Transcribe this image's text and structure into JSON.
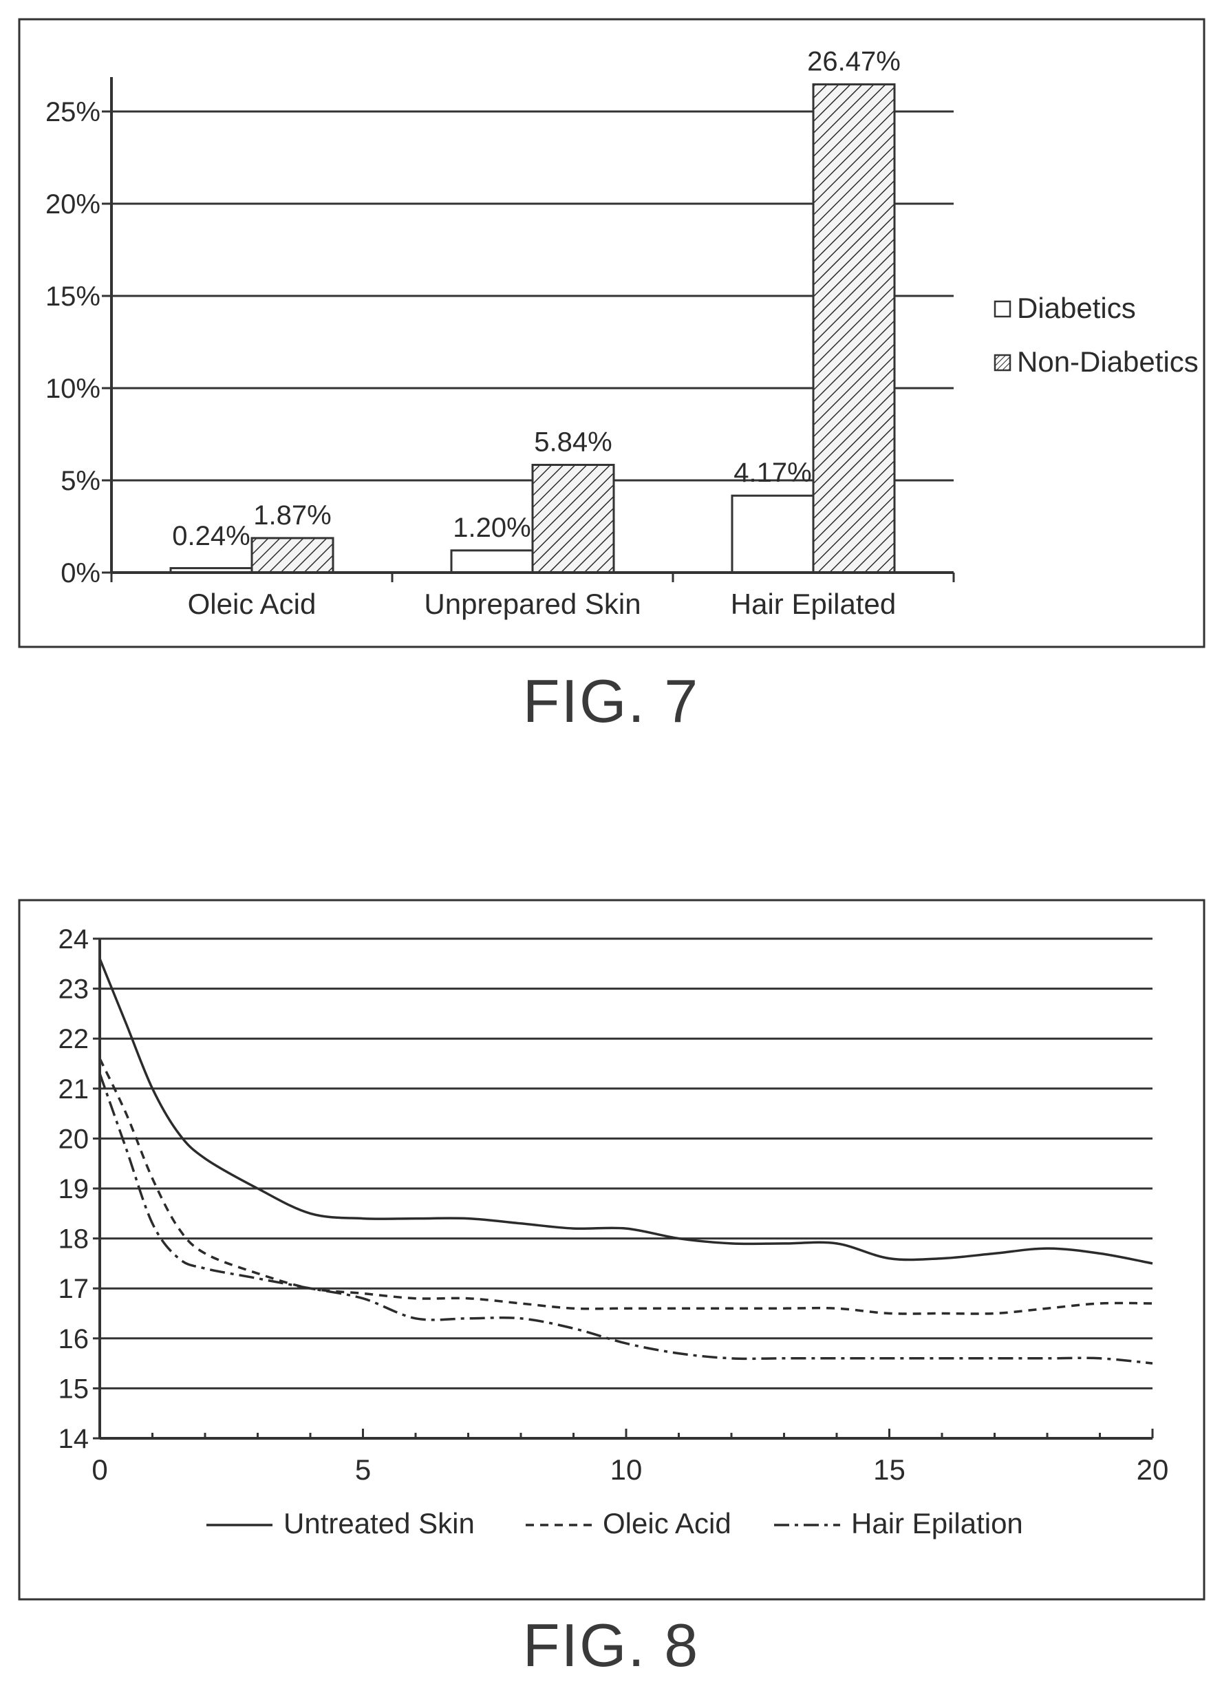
{
  "figures": [
    {
      "caption": "FIG. 7"
    },
    {
      "caption": "FIG. 8"
    }
  ],
  "chart_data": [
    {
      "type": "bar",
      "title": "",
      "categories": [
        "Oleic Acid",
        "Unprepared Skin",
        "Hair Epilated"
      ],
      "series": [
        {
          "name": "Diabetics",
          "values": [
            0.24,
            1.2,
            4.17
          ],
          "labels": [
            "0.24%",
            "1.20%",
            "4.17%"
          ],
          "pattern": "none"
        },
        {
          "name": "Non-Diabetics",
          "values": [
            1.87,
            5.84,
            26.47
          ],
          "labels": [
            "1.87%",
            "5.84%",
            "26.47%"
          ],
          "pattern": "hatch"
        }
      ],
      "yticks": [
        "0%",
        "5%",
        "10%",
        "15%",
        "20%",
        "25%"
      ],
      "ylim": [
        0,
        25
      ],
      "ylabel": "",
      "xlabel": "",
      "grid": true,
      "legend": "right"
    },
    {
      "type": "line",
      "title": "",
      "x": [
        0,
        0.5,
        1,
        1.5,
        2,
        3,
        4,
        5,
        6,
        7,
        8,
        9,
        10,
        11,
        12,
        13,
        14,
        15,
        16,
        17,
        18,
        19,
        20
      ],
      "series": [
        {
          "name": "Untreated Skin",
          "dash": "solid",
          "values": [
            23.6,
            22.3,
            21.0,
            20.1,
            19.6,
            19.0,
            18.5,
            18.4,
            18.4,
            18.4,
            18.3,
            18.2,
            18.2,
            18.0,
            17.9,
            17.9,
            17.9,
            17.6,
            17.6,
            17.7,
            17.8,
            17.7,
            17.5
          ]
        },
        {
          "name": "Oleic Acid",
          "dash": "dashed",
          "values": [
            21.6,
            20.5,
            19.2,
            18.2,
            17.7,
            17.3,
            17.0,
            16.9,
            16.8,
            16.8,
            16.7,
            16.6,
            16.6,
            16.6,
            16.6,
            16.6,
            16.6,
            16.5,
            16.5,
            16.5,
            16.6,
            16.7,
            16.7
          ]
        },
        {
          "name": "Hair Epilation",
          "dash": "dash-dot",
          "values": [
            21.3,
            19.8,
            18.3,
            17.6,
            17.4,
            17.2,
            17.0,
            16.8,
            16.4,
            16.4,
            16.4,
            16.2,
            15.9,
            15.7,
            15.6,
            15.6,
            15.6,
            15.6,
            15.6,
            15.6,
            15.6,
            15.6,
            15.5
          ]
        }
      ],
      "xticks": [
        "0",
        "5",
        "10",
        "15",
        "20"
      ],
      "yticks": [
        "14",
        "15",
        "16",
        "17",
        "18",
        "19",
        "20",
        "21",
        "22",
        "23",
        "24"
      ],
      "xlim": [
        0,
        20
      ],
      "ylim": [
        14,
        24
      ],
      "xlabel": "",
      "ylabel": "",
      "grid": true,
      "legend": "bottom"
    }
  ]
}
